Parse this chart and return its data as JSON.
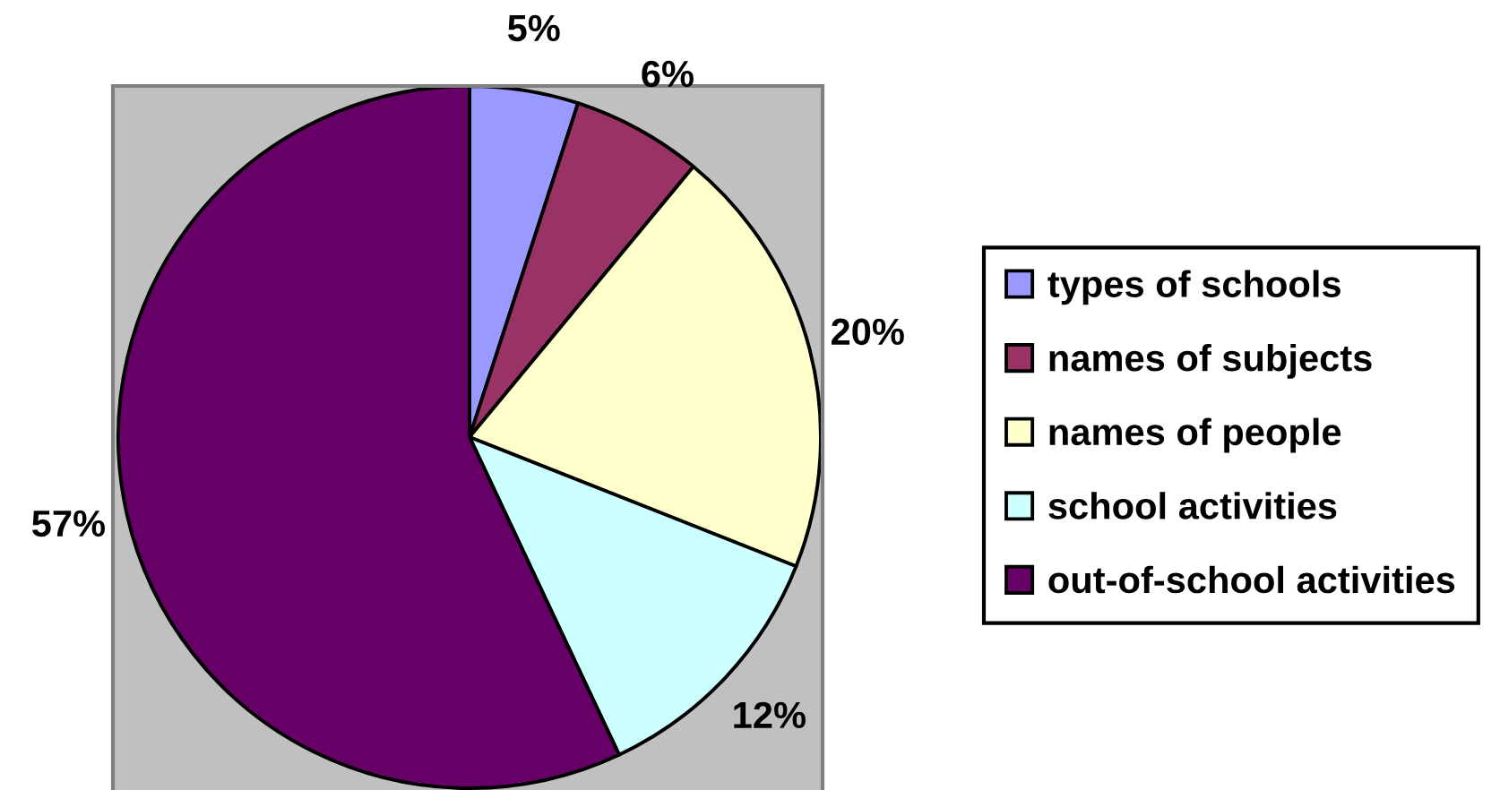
{
  "chart_data": {
    "type": "pie",
    "categories": [
      "types of schools",
      "names of subjects",
      "names of people",
      "school activities",
      "out-of-school activities"
    ],
    "values": [
      5,
      6,
      20,
      12,
      57
    ],
    "colors": [
      "#9999ff",
      "#993366",
      "#ffffcc",
      "#ccffff",
      "#660066"
    ],
    "value_labels": [
      "5%",
      "6%",
      "20%",
      "12%",
      "57%"
    ],
    "legend": "right"
  }
}
